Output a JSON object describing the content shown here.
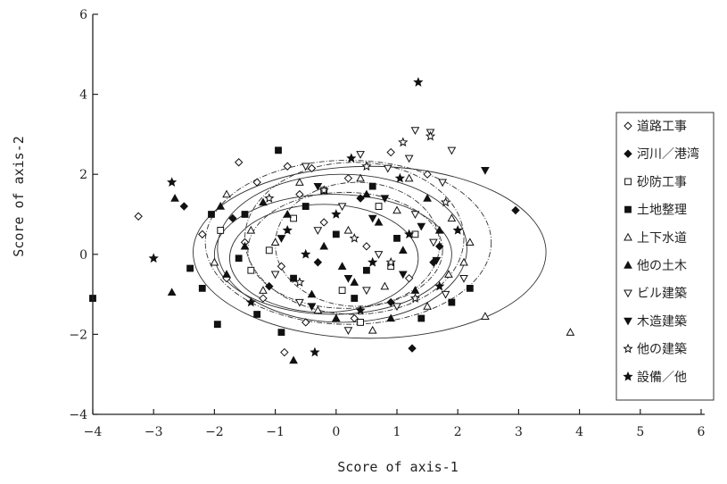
{
  "chart_data": {
    "type": "scatter",
    "title": "",
    "xlabel": "Score of axis-1",
    "ylabel": "Score of axis-2",
    "xlim": [
      -4,
      6
    ],
    "ylim": [
      -4,
      6
    ],
    "xticks": [
      -4,
      -3,
      -2,
      -1,
      0,
      1,
      2,
      3,
      4,
      5,
      6
    ],
    "yticks": [
      -4,
      -2,
      0,
      2,
      4,
      6
    ],
    "grid": false,
    "legend_position": "right",
    "ellipses": [
      {
        "cx": 0.55,
        "cy": 0.05,
        "rx": 2.9,
        "ry": 2.15
      },
      {
        "cx": 0.2,
        "cy": 0.3,
        "rx": 2.35,
        "ry": 2.05
      },
      {
        "cx": 0.1,
        "cy": 0.15,
        "rx": 2.05,
        "ry": 1.85
      },
      {
        "cx": 0.3,
        "cy": 0.4,
        "rx": 1.8,
        "ry": 1.9
      },
      {
        "cx": -0.05,
        "cy": 0.0,
        "rx": 1.95,
        "ry": 1.5
      },
      {
        "cx": 0.15,
        "cy": 0.1,
        "rx": 1.6,
        "ry": 1.45
      },
      {
        "cx": -0.2,
        "cy": -0.1,
        "rx": 1.55,
        "ry": 1.35
      },
      {
        "cx": 0.35,
        "cy": 0.25,
        "rx": 1.35,
        "ry": 1.55
      }
    ],
    "series": [
      {
        "name": "道路工事",
        "marker": "diamond-open",
        "points": [
          [
            -3.25,
            0.95
          ],
          [
            -1.6,
            2.3
          ],
          [
            -1.3,
            1.8
          ],
          [
            -0.8,
            2.2
          ],
          [
            -0.6,
            1.5
          ],
          [
            -0.4,
            2.15
          ],
          [
            0.2,
            1.9
          ],
          [
            -2.2,
            0.5
          ],
          [
            -1.8,
            -0.6
          ],
          [
            -1.2,
            -1.1
          ],
          [
            -0.85,
            -2.45
          ],
          [
            -0.5,
            -1.7
          ],
          [
            0.3,
            -1.6
          ],
          [
            0.9,
            2.55
          ],
          [
            1.5,
            2.0
          ],
          [
            -1.5,
            0.3
          ],
          [
            -0.2,
            0.8
          ],
          [
            0.5,
            0.2
          ],
          [
            -0.9,
            -0.3
          ],
          [
            1.2,
            -0.6
          ]
        ]
      },
      {
        "name": "河川／港湾",
        "marker": "diamond",
        "points": [
          [
            -2.5,
            1.2
          ],
          [
            2.95,
            1.1
          ],
          [
            1.25,
            -2.35
          ],
          [
            1.7,
            0.2
          ],
          [
            -1.1,
            -0.8
          ],
          [
            0.4,
            1.4
          ],
          [
            -0.3,
            -0.2
          ],
          [
            0.9,
            -1.2
          ],
          [
            1.6,
            -0.2
          ],
          [
            -1.7,
            0.9
          ]
        ]
      },
      {
        "name": "砂防工事",
        "marker": "square-open",
        "points": [
          [
            -1.9,
            0.6
          ],
          [
            -1.4,
            -0.4
          ],
          [
            -0.7,
            0.9
          ],
          [
            0.1,
            -0.9
          ],
          [
            0.7,
            1.2
          ],
          [
            1.3,
            0.5
          ],
          [
            -0.2,
            1.6
          ],
          [
            0.4,
            -1.7
          ],
          [
            -1.1,
            0.1
          ],
          [
            0.9,
            -0.3
          ]
        ]
      },
      {
        "name": "土地整理",
        "marker": "square",
        "points": [
          [
            -4.0,
            -1.1
          ],
          [
            -2.05,
            1.0
          ],
          [
            -1.95,
            -1.75
          ],
          [
            -0.95,
            2.6
          ],
          [
            -0.9,
            -1.95
          ],
          [
            2.2,
            -0.85
          ],
          [
            -2.2,
            -0.85
          ],
          [
            -2.4,
            -0.35
          ],
          [
            -1.5,
            1.0
          ],
          [
            -0.5,
            1.2
          ],
          [
            0.3,
            -1.1
          ],
          [
            1.0,
            0.4
          ],
          [
            1.9,
            -1.2
          ],
          [
            -1.3,
            -1.5
          ],
          [
            0.6,
            1.7
          ],
          [
            -0.7,
            -0.6
          ],
          [
            0.0,
            0.5
          ],
          [
            1.4,
            -1.6
          ],
          [
            -1.6,
            -0.1
          ],
          [
            0.5,
            -0.4
          ]
        ]
      },
      {
        "name": "上下水道",
        "marker": "triangle-open",
        "points": [
          [
            3.85,
            -1.95
          ],
          [
            2.45,
            -1.55
          ],
          [
            1.85,
            -0.5
          ],
          [
            2.1,
            -0.2
          ],
          [
            1.2,
            1.9
          ],
          [
            0.4,
            1.9
          ],
          [
            -1.4,
            0.6
          ],
          [
            -1.8,
            1.5
          ],
          [
            -1.0,
            0.3
          ],
          [
            0.2,
            0.6
          ],
          [
            0.8,
            -0.8
          ],
          [
            1.5,
            -1.3
          ],
          [
            -0.3,
            -1.4
          ],
          [
            -1.2,
            -0.9
          ],
          [
            2.2,
            0.3
          ],
          [
            1.0,
            1.1
          ],
          [
            -0.6,
            1.8
          ],
          [
            0.6,
            -1.9
          ],
          [
            1.9,
            0.9
          ],
          [
            -2.0,
            -0.2
          ]
        ]
      },
      {
        "name": "他の土木",
        "marker": "triangle",
        "points": [
          [
            -2.7,
            -0.95
          ],
          [
            -2.65,
            1.4
          ],
          [
            -1.8,
            -0.5
          ],
          [
            -0.7,
            -2.65
          ],
          [
            -1.5,
            0.2
          ],
          [
            -0.8,
            1.0
          ],
          [
            0.1,
            -0.3
          ],
          [
            0.7,
            0.8
          ],
          [
            1.3,
            -0.9
          ],
          [
            -0.4,
            -1.0
          ],
          [
            0.5,
            1.5
          ],
          [
            1.7,
            0.6
          ],
          [
            -1.2,
            1.3
          ],
          [
            0.0,
            -1.6
          ],
          [
            0.9,
            -1.6
          ],
          [
            -1.9,
            1.2
          ],
          [
            1.5,
            1.4
          ],
          [
            -0.2,
            0.2
          ],
          [
            0.3,
            -0.7
          ],
          [
            1.1,
            0.1
          ]
        ]
      },
      {
        "name": "ビル建築",
        "marker": "triangle-down-open",
        "points": [
          [
            1.3,
            3.1
          ],
          [
            1.55,
            3.05
          ],
          [
            1.9,
            2.6
          ],
          [
            0.85,
            2.15
          ],
          [
            1.75,
            1.8
          ],
          [
            0.4,
            2.5
          ],
          [
            1.2,
            2.4
          ],
          [
            -0.5,
            2.2
          ],
          [
            1.0,
            -1.3
          ],
          [
            0.5,
            -0.9
          ],
          [
            1.8,
            -1.0
          ],
          [
            1.3,
            1.0
          ],
          [
            -0.3,
            0.6
          ],
          [
            0.7,
            0.0
          ],
          [
            2.1,
            -0.6
          ],
          [
            0.1,
            1.2
          ],
          [
            -1.0,
            -0.5
          ],
          [
            1.6,
            0.3
          ],
          [
            -0.6,
            -1.2
          ],
          [
            0.2,
            -1.9
          ]
        ]
      },
      {
        "name": "木造建築",
        "marker": "triangle-down",
        "points": [
          [
            2.45,
            2.1
          ],
          [
            1.65,
            -0.15
          ],
          [
            -0.3,
            1.7
          ],
          [
            0.6,
            0.9
          ],
          [
            1.1,
            -0.5
          ],
          [
            -0.9,
            0.4
          ],
          [
            0.2,
            -0.6
          ],
          [
            1.4,
            0.7
          ],
          [
            -0.4,
            -1.3
          ],
          [
            0.8,
            1.4
          ]
        ]
      },
      {
        "name": "他の建築",
        "marker": "star-open",
        "points": [
          [
            1.55,
            2.95
          ],
          [
            1.1,
            2.8
          ],
          [
            0.5,
            2.2
          ],
          [
            -0.2,
            1.6
          ],
          [
            0.9,
            -0.2
          ],
          [
            1.8,
            1.3
          ],
          [
            -1.1,
            1.4
          ],
          [
            0.3,
            0.4
          ],
          [
            -0.6,
            -0.7
          ],
          [
            1.3,
            -1.1
          ]
        ]
      },
      {
        "name": "設備／他",
        "marker": "star",
        "points": [
          [
            1.35,
            4.3
          ],
          [
            -3.0,
            -0.1
          ],
          [
            -2.7,
            1.8
          ],
          [
            -0.35,
            -2.45
          ],
          [
            0.25,
            2.4
          ],
          [
            1.05,
            1.9
          ],
          [
            -0.8,
            0.6
          ],
          [
            0.6,
            -0.2
          ],
          [
            1.7,
            -0.8
          ],
          [
            -1.4,
            -1.2
          ],
          [
            0.0,
            1.0
          ],
          [
            1.2,
            0.5
          ],
          [
            -0.5,
            0.0
          ],
          [
            0.4,
            -1.4
          ],
          [
            2.0,
            0.6
          ]
        ]
      }
    ]
  }
}
